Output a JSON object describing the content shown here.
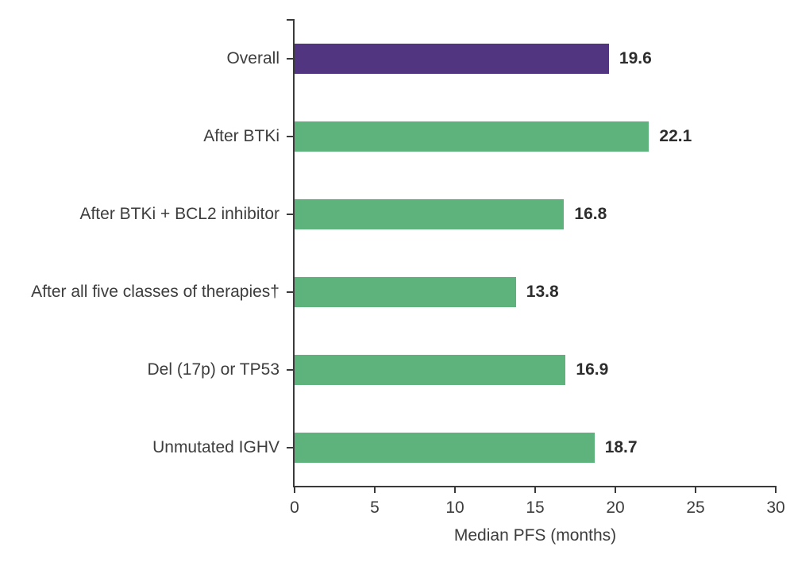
{
  "chart_data": {
    "type": "bar",
    "orientation": "horizontal",
    "xlabel": "Median PFS (months)",
    "xlim": [
      0,
      30
    ],
    "xticks": [
      0,
      5,
      10,
      15,
      20,
      25,
      30
    ],
    "grid": false,
    "legend": "none",
    "categories": [
      "Overall",
      "After BTKi",
      "After BTKi + BCL2 inhibitor",
      "After all five classes of therapies†",
      "Del (17p) or TP53",
      "Unmutated IGHV"
    ],
    "values": [
      19.6,
      22.1,
      16.8,
      13.8,
      16.9,
      18.7
    ],
    "value_labels": [
      "19.6",
      "22.1",
      "16.8",
      "13.8",
      "16.9",
      "18.7"
    ],
    "bar_colors": [
      "#523580",
      "#5DB37B",
      "#5DB37B",
      "#5DB37B",
      "#5DB37B",
      "#5DB37B"
    ]
  },
  "colors": {
    "highlight_purple": "#523580",
    "series_green": "#5DB37B",
    "axis": "#3A3A3A",
    "label_text": "#3D3D3D",
    "value_text": "#2D2D2D",
    "background": "#FFFFFF"
  }
}
